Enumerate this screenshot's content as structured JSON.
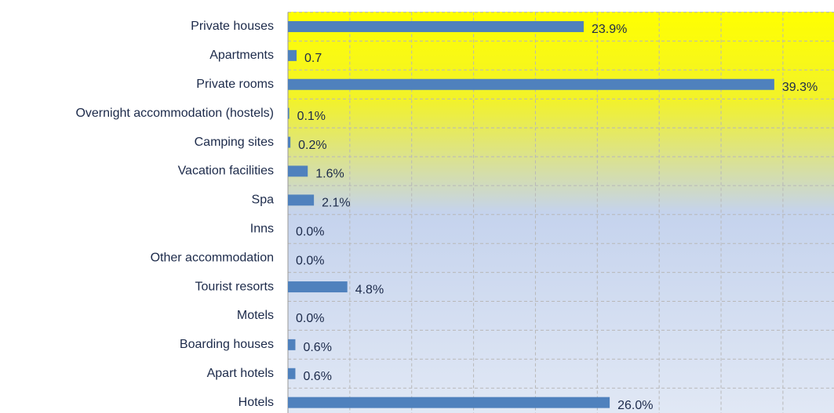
{
  "chart_data": {
    "type": "hbar",
    "categories": [
      "Private houses",
      "Apartments",
      "Private rooms",
      "Overnight accommodation (hostels)",
      "Camping sites",
      "Vacation facilities",
      "Spa",
      "Inns",
      "Other accommodation",
      "Tourist resorts",
      "Motels",
      "Boarding houses",
      "Apart hotels",
      "Hotels"
    ],
    "values": [
      23.9,
      0.7,
      39.3,
      0.1,
      0.2,
      1.6,
      2.1,
      0,
      0,
      4.8,
      0,
      0.6,
      0.6,
      26.0
    ],
    "value_labels": [
      "23.9%",
      "0.7",
      "39.3%",
      "0.1%",
      "0.2%",
      "1.6%",
      "2.1%",
      "0.0%",
      "0.0%",
      "4.8%",
      "0.0%",
      "0.6%",
      "0.6%",
      "26.0%"
    ],
    "color": "#4f81bd",
    "xlim": [
      0,
      44
    ],
    "xticks": [
      0,
      5,
      10,
      15,
      20,
      25,
      30,
      35,
      40
    ],
    "grid": true
  }
}
